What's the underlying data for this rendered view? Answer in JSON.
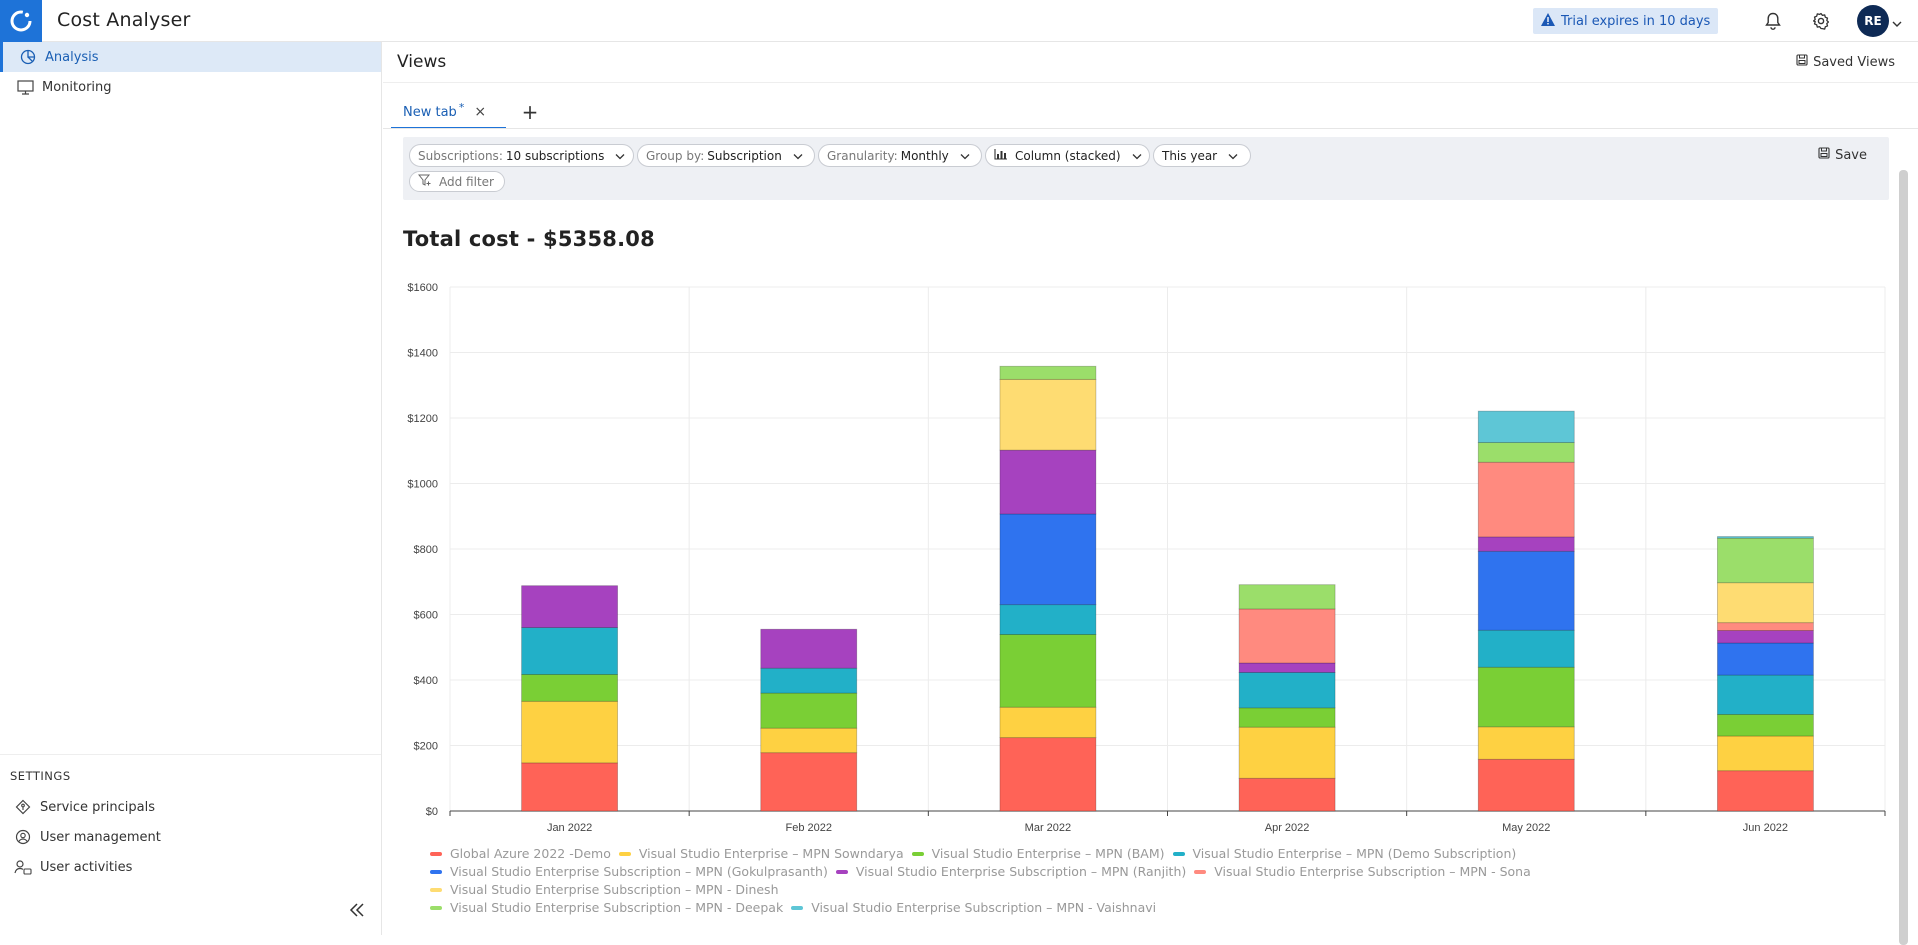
{
  "app": {
    "title": "Cost Analyser"
  },
  "topbar": {
    "trial_text": "Trial expires in 10 days",
    "avatar_initials": "RE"
  },
  "sidebar": {
    "items": [
      {
        "label": "Analysis",
        "icon": "pie-chart-icon",
        "active": true
      },
      {
        "label": "Monitoring",
        "icon": "monitor-icon",
        "active": false
      }
    ],
    "settings_title": "SETTINGS",
    "settings_items": [
      {
        "label": "Service principals",
        "icon": "diamond-key-icon"
      },
      {
        "label": "User management",
        "icon": "user-circle-icon"
      },
      {
        "label": "User activities",
        "icon": "user-activity-icon"
      }
    ]
  },
  "main": {
    "title": "Views",
    "saved_views_label": "Saved Views",
    "tabs": [
      {
        "label": "New tab",
        "modified_marker": "*"
      }
    ],
    "add_tab_label": "+",
    "filters": {
      "subscriptions": {
        "prefix": "Subscriptions:",
        "value": "10 subscriptions"
      },
      "group_by": {
        "prefix": "Group by:",
        "value": "Subscription"
      },
      "granularity": {
        "prefix": "Granularity:",
        "value": "Monthly"
      },
      "chart_type": {
        "value": "Column (stacked)"
      },
      "period": {
        "value": "This year"
      },
      "add_filter_label": "Add filter",
      "save_label": "Save"
    },
    "total_label": "Total cost - $5358.08"
  },
  "chart_data": {
    "type": "bar",
    "stacked": true,
    "categories": [
      "Jan 2022",
      "Feb 2022",
      "Mar 2022",
      "Apr 2022",
      "May 2022",
      "Jun 2022"
    ],
    "ylim": [
      0,
      1600
    ],
    "yticks": [
      "$0",
      "$200",
      "$400",
      "$600",
      "$800",
      "$1000",
      "$1200",
      "$1400",
      "$1600"
    ],
    "grid": true,
    "legend_position": "bottom",
    "series": [
      {
        "name": "Global Azure 2022 -Demo",
        "color": "#ff6357",
        "values": [
          147,
          178,
          224,
          100,
          158,
          123
        ]
      },
      {
        "name": "Visual Studio Enterprise – MPN Sowndarya",
        "color": "#fed142",
        "values": [
          188,
          75,
          93,
          156,
          99,
          106
        ]
      },
      {
        "name": "Visual Studio Enterprise – MPN (BAM)",
        "color": "#7acf35",
        "values": [
          82,
          107,
          222,
          59,
          182,
          66
        ]
      },
      {
        "name": "Visual Studio Enterprise – MPN (Demo Subscription)",
        "color": "#22b0c8",
        "values": [
          143,
          76,
          91,
          108,
          113,
          120
        ]
      },
      {
        "name": "Visual Studio Enterprise Subscription – MPN (Gokulprasanth)",
        "color": "#2f73ef",
        "values": [
          0,
          0,
          277,
          0,
          241,
          98
        ]
      },
      {
        "name": "Visual Studio Enterprise Subscription – MPN (Ranjith)",
        "color": "#a642bf",
        "values": [
          128,
          119,
          195,
          29,
          44,
          38
        ]
      },
      {
        "name": "Visual Studio Enterprise Subscription – MPN - Sona",
        "color": "#ff8a7f",
        "values": [
          0,
          0,
          0,
          165,
          228,
          24
        ]
      },
      {
        "name": "Visual Studio Enterprise Subscription – MPN - Dinesh",
        "color": "#fedc72",
        "values": [
          0,
          0,
          216,
          0,
          0,
          122
        ]
      },
      {
        "name": "Visual Studio Enterprise Subscription – MPN - Deepak",
        "color": "#9bde6a",
        "values": [
          0,
          0,
          40,
          74,
          60,
          136
        ]
      },
      {
        "name": "Visual Studio Enterprise Subscription – MPN - Vaishnavi",
        "color": "#5ec6d6",
        "values": [
          0,
          0,
          0,
          0,
          96,
          5
        ]
      }
    ]
  }
}
